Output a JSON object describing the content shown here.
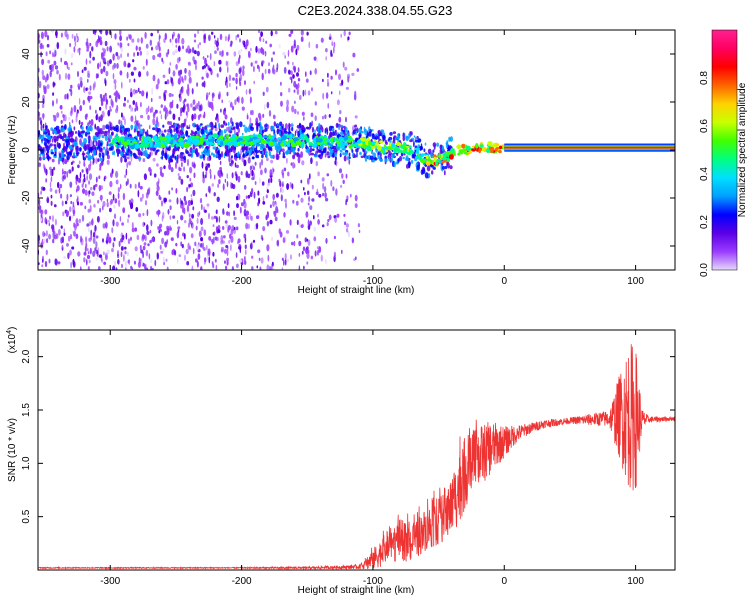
{
  "title": "C2E3.2024.338.04.55.G23",
  "chart_data": [
    {
      "type": "heatmap",
      "xlabel": "Height of straight line (km)",
      "ylabel": "Frequency (Hz)",
      "xlim": [
        -355,
        130
      ],
      "ylim": [
        -50,
        50
      ],
      "x_ticks": [
        -300,
        -200,
        -100,
        0,
        100
      ],
      "y_ticks": [
        -40,
        -20,
        0,
        20,
        40
      ],
      "colorbar": {
        "label": "Normalized spectral amplitude",
        "range": [
          0,
          1
        ],
        "ticks": [
          "0.0",
          "0.2",
          "0.4",
          "0.6",
          "0.8"
        ],
        "tick_values": [
          0,
          0.2,
          0.4,
          0.6,
          0.8
        ],
        "colors": [
          "#e6d8ff",
          "#9a3cff",
          "#5a00e6",
          "#0000ff",
          "#00a0ff",
          "#00e0ff",
          "#00ff80",
          "#40ff00",
          "#c8ff00",
          "#ffd200",
          "#ff6400",
          "#ff0000",
          "#ff0060",
          "#ff2090"
        ]
      },
      "signal_trace": [
        [
          -290,
          3
        ],
        [
          -220,
          4
        ],
        [
          -200,
          4
        ],
        [
          -150,
          4
        ],
        [
          -110,
          3
        ],
        [
          -90,
          1
        ],
        [
          -70,
          0
        ],
        [
          -55,
          -5
        ],
        [
          -45,
          -3
        ],
        [
          -35,
          0
        ],
        [
          -25,
          1
        ],
        [
          -10,
          1
        ],
        [
          0,
          1
        ],
        [
          130,
          1
        ]
      ],
      "noise_extent_x": [
        -355,
        -110
      ]
    },
    {
      "type": "line",
      "xlabel": "Height of straight line (km)",
      "ylabel": "SNR (10 * v/v)",
      "y_multiplier": "(x10",
      "y_multiplier_exp": "4",
      "xlim": [
        -355,
        130
      ],
      "ylim": [
        0,
        2.25
      ],
      "x_ticks": [
        -300,
        -200,
        -100,
        0,
        100
      ],
      "y_ticks": [
        0.5,
        1.0,
        1.5,
        2.0
      ],
      "line_color": "#ee3333",
      "series": [
        {
          "x": [
            -355,
            -300,
            -200,
            -150,
            -110,
            -100,
            -90,
            -80,
            -70,
            -60,
            -50,
            -40,
            -30,
            -20,
            -10,
            0,
            10,
            20,
            30,
            50,
            80,
            90,
            95,
            100,
            105,
            110,
            130
          ],
          "y": [
            0.02,
            0.02,
            0.02,
            0.02,
            0.03,
            0.1,
            0.2,
            0.28,
            0.25,
            0.38,
            0.45,
            0.6,
            0.9,
            1.05,
            1.15,
            1.2,
            1.28,
            1.33,
            1.37,
            1.4,
            1.42,
            1.45,
            1.45,
            1.42,
            1.41,
            1.41,
            1.42
          ],
          "noise": [
            0.005,
            0.005,
            0.005,
            0.01,
            0.02,
            0.1,
            0.15,
            0.2,
            0.18,
            0.2,
            0.22,
            0.3,
            0.35,
            0.3,
            0.25,
            0.15,
            0.08,
            0.05,
            0.04,
            0.03,
            0.08,
            0.5,
            0.7,
            0.7,
            0.1,
            0.03,
            0.02
          ]
        }
      ]
    }
  ]
}
